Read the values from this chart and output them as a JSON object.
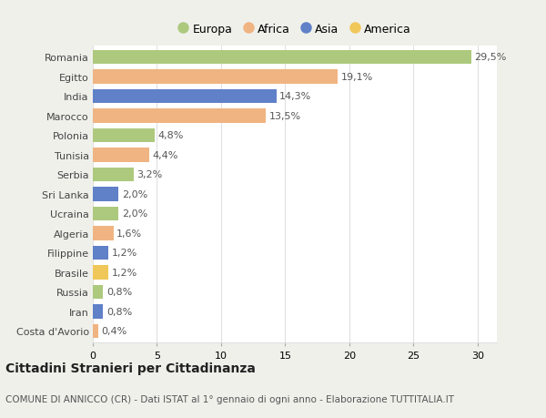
{
  "categories": [
    "Romania",
    "Egitto",
    "India",
    "Marocco",
    "Polonia",
    "Tunisia",
    "Serbia",
    "Sri Lanka",
    "Ucraina",
    "Algeria",
    "Filippine",
    "Brasile",
    "Russia",
    "Iran",
    "Costa d'Avorio"
  ],
  "values": [
    29.5,
    19.1,
    14.3,
    13.5,
    4.8,
    4.4,
    3.2,
    2.0,
    2.0,
    1.6,
    1.2,
    1.2,
    0.8,
    0.8,
    0.4
  ],
  "labels": [
    "29,5%",
    "19,1%",
    "14,3%",
    "13,5%",
    "4,8%",
    "4,4%",
    "3,2%",
    "2,0%",
    "2,0%",
    "1,6%",
    "1,2%",
    "1,2%",
    "0,8%",
    "0,8%",
    "0,4%"
  ],
  "continents": [
    "Europa",
    "Africa",
    "Asia",
    "Africa",
    "Europa",
    "Africa",
    "Europa",
    "Asia",
    "Europa",
    "Africa",
    "Asia",
    "America",
    "Europa",
    "Asia",
    "Africa"
  ],
  "colors": {
    "Europa": "#adc97e",
    "Africa": "#f0b482",
    "Asia": "#6080c8",
    "America": "#f0c85a"
  },
  "legend_order": [
    "Europa",
    "Africa",
    "Asia",
    "America"
  ],
  "title": "Cittadini Stranieri per Cittadinanza",
  "subtitle": "COMUNE DI ANNICCO (CR) - Dati ISTAT al 1° gennaio di ogni anno - Elaborazione TUTTITALIA.IT",
  "xlim": [
    0,
    31.5
  ],
  "xticks": [
    0,
    5,
    10,
    15,
    20,
    25,
    30
  ],
  "background_color": "#f0f0eb",
  "plot_bg_color": "#ffffff",
  "grid_color": "#e0e0e0",
  "bar_height": 0.72,
  "title_fontsize": 10,
  "subtitle_fontsize": 7.5,
  "label_fontsize": 8,
  "tick_fontsize": 8,
  "legend_fontsize": 9
}
